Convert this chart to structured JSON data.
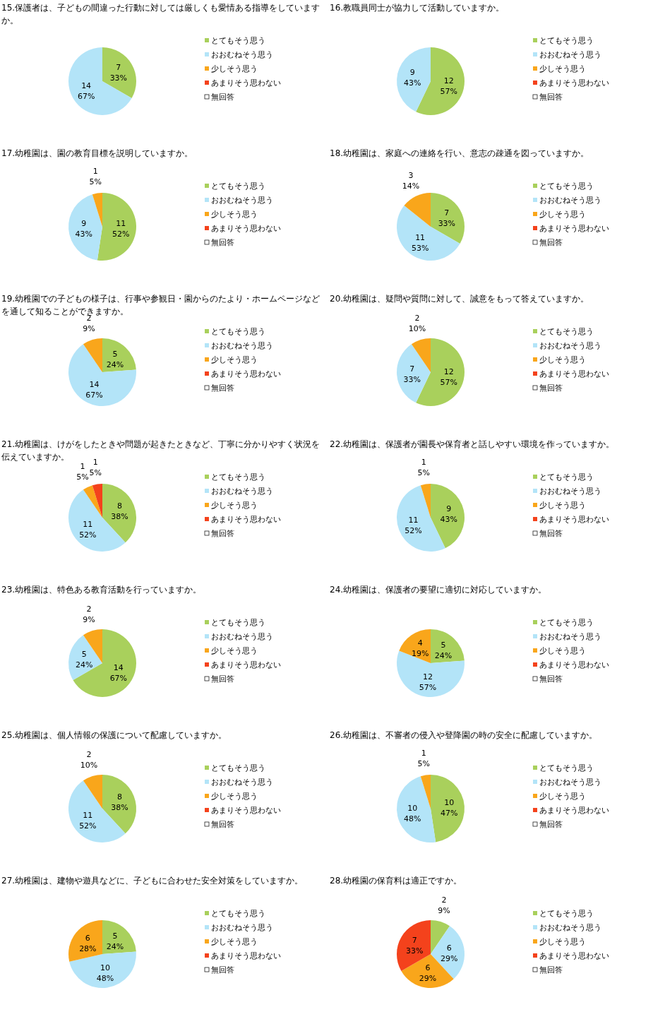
{
  "chart_data": [
    {
      "type": "pie",
      "title": "15.保護者は、子どもの間違った行動に対しては厳しくも愛情ある指導をしていますか。",
      "categories": [
        "とてもそう思う",
        "おおむねそう思う",
        "少しそう思う",
        "あまりそう思わない",
        "無回答"
      ],
      "values": [
        7,
        14,
        0,
        0,
        0
      ],
      "value_labels": [
        "7\n33%",
        "14\n67%",
        null,
        null,
        null
      ],
      "colors": [
        "#a9d05c",
        "#b3e4f8",
        "#f9a61b",
        "#f4421c",
        "#ffffff"
      ],
      "legend": "right"
    },
    {
      "type": "pie",
      "title": "16.教職員同士が協力して活動していますか。",
      "categories": [
        "とてもそう思う",
        "おおむねそう思う",
        "少しそう思う",
        "あまりそう思わない",
        "無回答"
      ],
      "values": [
        12,
        9,
        0,
        0,
        0
      ],
      "value_labels": [
        "12\n57%",
        "9\n43%",
        null,
        null,
        null
      ],
      "colors": [
        "#a9d05c",
        "#b3e4f8",
        "#f9a61b",
        "#f4421c",
        "#ffffff"
      ],
      "legend": "right"
    },
    {
      "type": "pie",
      "title": "17.幼稚園は、園の教育目標を説明していますか。",
      "categories": [
        "とてもそう思う",
        "おおむねそう思う",
        "少しそう思う",
        "あまりそう思わない",
        "無回答"
      ],
      "values": [
        11,
        9,
        1,
        0,
        0
      ],
      "value_labels": [
        "11\n52%",
        "9\n43%",
        "1\n5%",
        null,
        null
      ],
      "colors": [
        "#a9d05c",
        "#b3e4f8",
        "#f9a61b",
        "#f4421c",
        "#ffffff"
      ],
      "legend": "right"
    },
    {
      "type": "pie",
      "title": "18.幼稚園は、家庭への連絡を行い、意志の疎通を図っていますか。",
      "categories": [
        "とてもそう思う",
        "おおむねそう思う",
        "少しそう思う",
        "あまりそう思わない",
        "無回答"
      ],
      "values": [
        7,
        11,
        3,
        0,
        0
      ],
      "value_labels": [
        "7\n33%",
        "11\n53%",
        "3\n14%",
        null,
        null
      ],
      "colors": [
        "#a9d05c",
        "#b3e4f8",
        "#f9a61b",
        "#f4421c",
        "#ffffff"
      ],
      "legend": "right"
    },
    {
      "type": "pie",
      "title": "19.幼稚園での子どもの様子は、行事や参観日・園からのたより・ホームページなどを通して知ることができますか。",
      "categories": [
        "とてもそう思う",
        "おおむねそう思う",
        "少しそう思う",
        "あまりそう思わない",
        "無回答"
      ],
      "values": [
        5,
        14,
        2,
        0,
        0
      ],
      "value_labels": [
        "5\n24%",
        "14\n67%",
        "2\n9%",
        null,
        null
      ],
      "colors": [
        "#a9d05c",
        "#b3e4f8",
        "#f9a61b",
        "#f4421c",
        "#ffffff"
      ],
      "legend": "right"
    },
    {
      "type": "pie",
      "title": "20.幼稚園は、疑問や質問に対して、誠意をもって答えていますか。",
      "categories": [
        "とてもそう思う",
        "おおむねそう思う",
        "少しそう思う",
        "あまりそう思わない",
        "無回答"
      ],
      "values": [
        12,
        7,
        2,
        0,
        0
      ],
      "value_labels": [
        "12\n57%",
        "7\n33%",
        "2\n10%",
        null,
        null
      ],
      "colors": [
        "#a9d05c",
        "#b3e4f8",
        "#f9a61b",
        "#f4421c",
        "#ffffff"
      ],
      "legend": "right"
    },
    {
      "type": "pie",
      "title": "21.幼稚園は、けがをしたときや問題が起きたときなど、丁寧に分かりやすく状況を伝えていますか。",
      "categories": [
        "とてもそう思う",
        "おおむねそう思う",
        "少しそう思う",
        "あまりそう思わない",
        "無回答"
      ],
      "values": [
        8,
        11,
        1,
        1,
        0
      ],
      "value_labels": [
        "8\n38%",
        "11\n52%",
        "1\n5%",
        "1\n5%",
        null
      ],
      "colors": [
        "#a9d05c",
        "#b3e4f8",
        "#f9a61b",
        "#f4421c",
        "#ffffff"
      ],
      "legend": "right"
    },
    {
      "type": "pie",
      "title": "22.幼稚園は、保護者が園長や保育者と話しやすい環境を作っていますか。",
      "categories": [
        "とてもそう思う",
        "おおむねそう思う",
        "少しそう思う",
        "あまりそう思わない",
        "無回答"
      ],
      "values": [
        9,
        11,
        1,
        0,
        0
      ],
      "value_labels": [
        "9\n43%",
        "11\n52%",
        "1\n5%",
        null,
        null
      ],
      "colors": [
        "#a9d05c",
        "#b3e4f8",
        "#f9a61b",
        "#f4421c",
        "#ffffff"
      ],
      "legend": "right"
    },
    {
      "type": "pie",
      "title": "23.幼稚園は、特色ある教育活動を行っていますか。",
      "categories": [
        "とてもそう思う",
        "おおむねそう思う",
        "少しそう思う",
        "あまりそう思わない",
        "無回答"
      ],
      "values": [
        14,
        5,
        2,
        0,
        0
      ],
      "value_labels": [
        "14\n67%",
        "5\n24%",
        "2\n9%",
        null,
        null
      ],
      "colors": [
        "#a9d05c",
        "#b3e4f8",
        "#f9a61b",
        "#f4421c",
        "#ffffff"
      ],
      "legend": "right"
    },
    {
      "type": "pie",
      "title": "24.幼稚園は、保護者の要望に適切に対応していますか。",
      "categories": [
        "とてもそう思う",
        "おおむねそう思う",
        "少しそう思う",
        "あまりそう思わない",
        "無回答"
      ],
      "values": [
        5,
        12,
        4,
        0,
        0
      ],
      "value_labels": [
        "5\n24%",
        "12\n57%",
        "4\n19%",
        null,
        null
      ],
      "colors": [
        "#a9d05c",
        "#b3e4f8",
        "#f9a61b",
        "#f4421c",
        "#ffffff"
      ],
      "legend": "right"
    },
    {
      "type": "pie",
      "title": "25.幼稚園は、個人情報の保護について配慮していますか。",
      "categories": [
        "とてもそう思う",
        "おおむねそう思う",
        "少しそう思う",
        "あまりそう思わない",
        "無回答"
      ],
      "values": [
        8,
        11,
        2,
        0,
        0
      ],
      "value_labels": [
        "8\n38%",
        "11\n52%",
        "2\n10%",
        null,
        null
      ],
      "colors": [
        "#a9d05c",
        "#b3e4f8",
        "#f9a61b",
        "#f4421c",
        "#ffffff"
      ],
      "legend": "right"
    },
    {
      "type": "pie",
      "title": "26.幼稚園は、不審者の侵入や登降園の時の安全に配慮していますか。",
      "categories": [
        "とてもそう思う",
        "おおむねそう思う",
        "少しそう思う",
        "あまりそう思わない",
        "無回答"
      ],
      "values": [
        10,
        10,
        1,
        0,
        0
      ],
      "value_labels": [
        "10\n47%",
        "10\n48%",
        "1\n5%",
        null,
        null
      ],
      "colors": [
        "#a9d05c",
        "#b3e4f8",
        "#f9a61b",
        "#f4421c",
        "#ffffff"
      ],
      "legend": "right"
    },
    {
      "type": "pie",
      "title": "27.幼稚園は、建物や遊具などに、子どもに合わせた安全対策をしていますか。",
      "categories": [
        "とてもそう思う",
        "おおむねそう思う",
        "少しそう思う",
        "あまりそう思わない",
        "無回答"
      ],
      "values": [
        5,
        10,
        6,
        0,
        0
      ],
      "value_labels": [
        "5\n24%",
        "10\n48%",
        "6\n28%",
        null,
        null
      ],
      "colors": [
        "#a9d05c",
        "#b3e4f8",
        "#f9a61b",
        "#f4421c",
        "#ffffff"
      ],
      "legend": "right"
    },
    {
      "type": "pie",
      "title": "28.幼稚園の保育料は適正ですか。",
      "categories": [
        "とてもそう思う",
        "おおむねそう思う",
        "少しそう思う",
        "あまりそう思わない",
        "無回答"
      ],
      "values": [
        2,
        6,
        6,
        7,
        0
      ],
      "value_labels": [
        "2\n9%",
        "6\n29%",
        "6\n29%",
        "7\n33%",
        null
      ],
      "colors": [
        "#a9d05c",
        "#b3e4f8",
        "#f9a61b",
        "#f4421c",
        "#ffffff"
      ],
      "legend": "right"
    }
  ]
}
